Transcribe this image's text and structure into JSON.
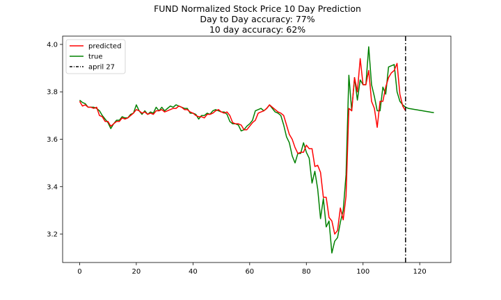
{
  "chart_data": {
    "type": "line",
    "title": "FUND Normalized Stock Price 10 Day Prediction",
    "subtitle_lines": [
      "Day to Day accuracy: 77%",
      "10 day accuracy: 62%"
    ],
    "xlabel": "",
    "ylabel": "",
    "xlim": [
      -6,
      131
    ],
    "ylim": [
      3.08,
      4.035
    ],
    "x_ticks": [
      0,
      20,
      40,
      60,
      80,
      100,
      120
    ],
    "y_ticks": [
      3.2,
      3.4,
      3.6,
      3.8,
      4.0
    ],
    "y_tick_labels": [
      "3.2",
      "3.4",
      "3.6",
      "3.8",
      "4.0"
    ],
    "grid": false,
    "legend_position": "top-left",
    "colors": {
      "predicted": "#ff0000",
      "true": "#008000",
      "vline": "#000000"
    },
    "series": [
      {
        "name": "predicted",
        "color": "#ff0000",
        "x": [
          0,
          1,
          2,
          3,
          4,
          5,
          6,
          7,
          8,
          9,
          10,
          11,
          12,
          13,
          14,
          15,
          16,
          17,
          18,
          19,
          20,
          21,
          22,
          23,
          24,
          25,
          26,
          27,
          28,
          29,
          30,
          31,
          32,
          33,
          34,
          35,
          36,
          37,
          38,
          39,
          40,
          41,
          42,
          43,
          44,
          45,
          46,
          47,
          48,
          49,
          50,
          51,
          52,
          53,
          54,
          55,
          56,
          57,
          58,
          59,
          60,
          61,
          62,
          63,
          64,
          65,
          66,
          67,
          68,
          69,
          70,
          71,
          72,
          73,
          74,
          75,
          76,
          77,
          78,
          79,
          80,
          81,
          82,
          83,
          84,
          85,
          86,
          87,
          88,
          89,
          90,
          91,
          92,
          93,
          94,
          95,
          96,
          97,
          98,
          99,
          100,
          101,
          102,
          103,
          104,
          105,
          106,
          107,
          108,
          109,
          110,
          111,
          112,
          113,
          114,
          115
        ],
        "values": [
          3.76,
          3.74,
          3.745,
          3.735,
          3.735,
          3.73,
          3.735,
          3.7,
          3.695,
          3.675,
          3.675,
          3.655,
          3.665,
          3.675,
          3.675,
          3.69,
          3.685,
          3.69,
          3.7,
          3.71,
          3.725,
          3.72,
          3.71,
          3.715,
          3.705,
          3.71,
          3.705,
          3.72,
          3.72,
          3.725,
          3.715,
          3.72,
          3.725,
          3.73,
          3.73,
          3.74,
          3.735,
          3.725,
          3.725,
          3.715,
          3.71,
          3.7,
          3.695,
          3.695,
          3.69,
          3.705,
          3.705,
          3.71,
          3.72,
          3.725,
          3.715,
          3.71,
          3.715,
          3.7,
          3.67,
          3.665,
          3.665,
          3.66,
          3.64,
          3.64,
          3.655,
          3.67,
          3.68,
          3.71,
          3.715,
          3.72,
          3.73,
          3.745,
          3.735,
          3.725,
          3.715,
          3.71,
          3.7,
          3.66,
          3.62,
          3.6,
          3.565,
          3.54,
          3.545,
          3.545,
          3.575,
          3.56,
          3.56,
          3.485,
          3.49,
          3.46,
          3.355,
          3.355,
          3.27,
          3.255,
          3.2,
          3.215,
          3.31,
          3.26,
          3.36,
          3.73,
          3.72,
          3.86,
          3.8,
          3.94,
          3.83,
          3.83,
          3.89,
          3.76,
          3.73,
          3.65,
          3.76,
          3.76,
          3.82,
          3.86,
          3.88,
          3.89,
          3.92,
          3.79,
          3.74,
          3.72
        ]
      },
      {
        "name": "true",
        "color": "#008000",
        "x": [
          0,
          1,
          2,
          3,
          4,
          5,
          6,
          7,
          8,
          9,
          10,
          11,
          12,
          13,
          14,
          15,
          16,
          17,
          18,
          19,
          20,
          21,
          22,
          23,
          24,
          25,
          26,
          27,
          28,
          29,
          30,
          31,
          32,
          33,
          34,
          35,
          36,
          37,
          38,
          39,
          40,
          41,
          42,
          43,
          44,
          45,
          46,
          47,
          48,
          49,
          50,
          51,
          52,
          53,
          54,
          55,
          56,
          57,
          58,
          59,
          60,
          61,
          62,
          63,
          64,
          65,
          66,
          67,
          68,
          69,
          70,
          71,
          72,
          73,
          74,
          75,
          76,
          77,
          78,
          79,
          80,
          81,
          82,
          83,
          84,
          85,
          86,
          87,
          88,
          89,
          90,
          91,
          92,
          93,
          94,
          95,
          96,
          97,
          98,
          99,
          100,
          101,
          102,
          103,
          104,
          105,
          106,
          107,
          108,
          109,
          110,
          111,
          112,
          113,
          114,
          115,
          116,
          117,
          118,
          119,
          120,
          121,
          122,
          123,
          124,
          125
        ],
        "values": [
          3.765,
          3.755,
          3.75,
          3.735,
          3.735,
          3.735,
          3.73,
          3.72,
          3.7,
          3.685,
          3.67,
          3.645,
          3.665,
          3.68,
          3.68,
          3.695,
          3.69,
          3.69,
          3.705,
          3.71,
          3.745,
          3.72,
          3.705,
          3.72,
          3.705,
          3.715,
          3.71,
          3.735,
          3.72,
          3.735,
          3.72,
          3.73,
          3.74,
          3.735,
          3.745,
          3.74,
          3.735,
          3.73,
          3.73,
          3.71,
          3.71,
          3.705,
          3.685,
          3.7,
          3.7,
          3.71,
          3.705,
          3.72,
          3.725,
          3.72,
          3.715,
          3.715,
          3.705,
          3.675,
          3.665,
          3.665,
          3.66,
          3.635,
          3.64,
          3.655,
          3.665,
          3.68,
          3.72,
          3.725,
          3.73,
          3.72,
          3.73,
          3.745,
          3.73,
          3.715,
          3.71,
          3.7,
          3.66,
          3.61,
          3.585,
          3.53,
          3.5,
          3.54,
          3.54,
          3.585,
          3.545,
          3.52,
          3.415,
          3.465,
          3.39,
          3.265,
          3.35,
          3.23,
          3.255,
          3.12,
          3.17,
          3.185,
          3.25,
          3.3,
          3.45,
          3.87,
          3.72,
          3.86,
          3.765,
          3.85,
          3.83,
          3.83,
          3.99,
          3.83,
          3.78,
          3.72,
          3.72,
          3.82,
          3.79,
          3.905,
          3.91,
          3.915,
          3.8,
          3.76,
          3.745,
          3.735,
          3.73,
          3.728,
          3.726,
          3.724,
          3.722,
          3.72,
          3.718,
          3.716,
          3.714,
          3.712
        ]
      }
    ],
    "vline": {
      "name": "april 27",
      "x": 115,
      "style": "dashdot",
      "color": "#000000"
    }
  }
}
